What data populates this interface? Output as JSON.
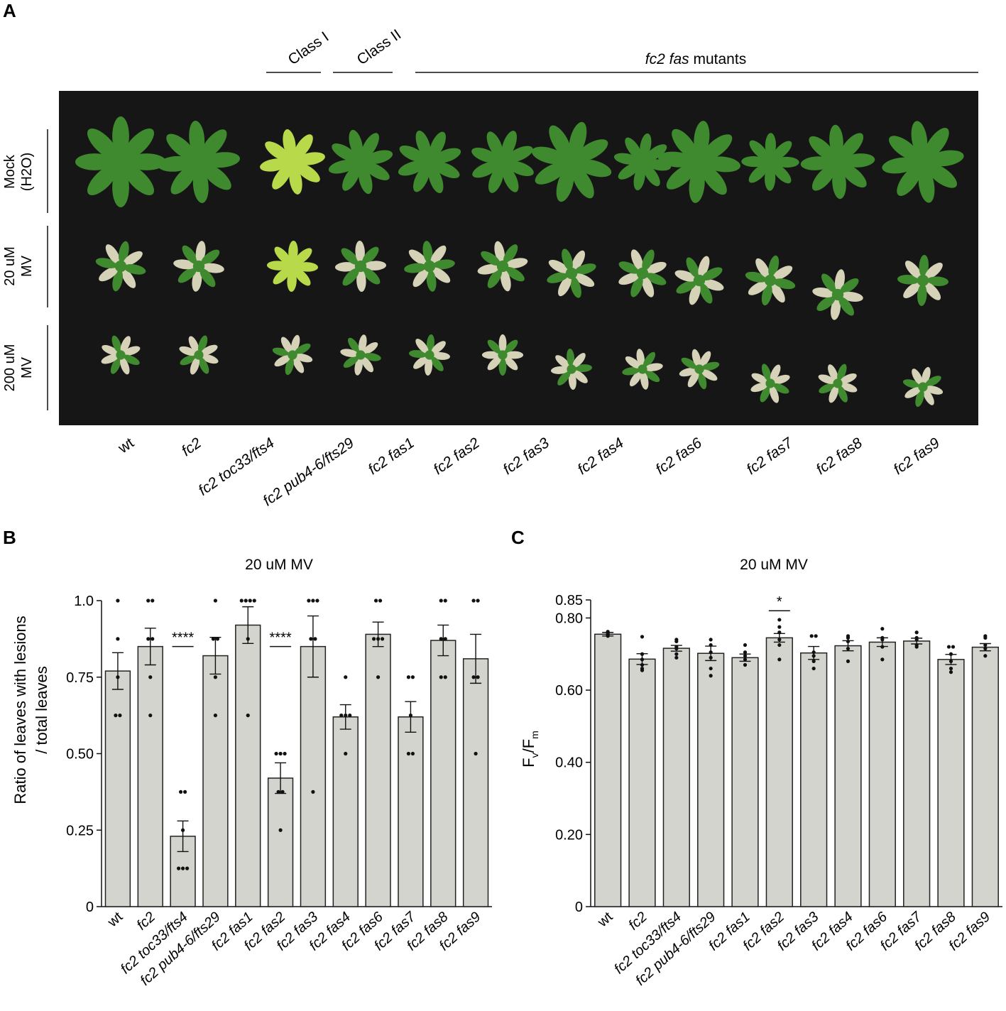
{
  "panel_a": {
    "letter": "A",
    "class_i_label": "Class I",
    "class_ii_label": "Class II",
    "mutants_label_italic": "fc2 fas",
    "mutants_label_rest": " mutants",
    "row_labels": [
      {
        "line1": "Mock",
        "line2": "(H2O)"
      },
      {
        "line1": "20 uM",
        "line2": "MV"
      },
      {
        "line1": "200 uM",
        "line2": "MV"
      }
    ],
    "genotypes": [
      "wt",
      "fc2",
      "fc2 toc33/fts4",
      "fc2 pub4-6/fts29",
      "fc2 fas1",
      "fc2 fas2",
      "fc2 fas3",
      "fc2 fas4",
      "fc2 fas6",
      "fc2 fas7",
      "fc2 fas8",
      "fc2 fas9"
    ],
    "colors": {
      "background": "#161616",
      "healthy": "#3f8a2e",
      "pale": "#b7d94a",
      "bleached": "#d6d2b8"
    }
  },
  "chart_data": [
    {
      "type": "bar",
      "letter": "B",
      "title": "20 uM MV",
      "ylabel_line1": "Ratio of leaves with lesions",
      "ylabel_line2": "/ total leaves",
      "ylim": [
        0,
        1.0
      ],
      "yticks": [
        0,
        0.25,
        0.5,
        0.75,
        1.0
      ],
      "ytick_labels": [
        "0",
        "0.25",
        "0.50",
        "0.75",
        "1.0"
      ],
      "categories": [
        "wt",
        "fc2",
        "fc2 toc33/fts4",
        "fc2 pub4-6/fts29",
        "fc2 fas1",
        "fc2 fas2",
        "fc2 fas3",
        "fc2 fas4",
        "fc2 fas6",
        "fc2 fas7",
        "fc2 fas8",
        "fc2 fas9"
      ],
      "values": [
        0.77,
        0.85,
        0.23,
        0.82,
        0.92,
        0.42,
        0.85,
        0.62,
        0.89,
        0.62,
        0.87,
        0.81
      ],
      "errors": [
        0.06,
        0.06,
        0.05,
        0.06,
        0.06,
        0.05,
        0.1,
        0.04,
        0.04,
        0.05,
        0.05,
        0.08
      ],
      "points": [
        [
          1.0,
          0.875,
          0.75,
          0.625,
          0.625
        ],
        [
          1.0,
          1.0,
          0.875,
          0.875,
          0.75,
          0.625
        ],
        [
          0.375,
          0.375,
          0.25,
          0.125,
          0.125,
          0.125
        ],
        [
          1.0,
          0.875,
          0.875,
          0.75,
          0.625
        ],
        [
          1.0,
          1.0,
          1.0,
          1.0,
          0.875,
          0.625
        ],
        [
          0.5,
          0.5,
          0.5,
          0.375,
          0.375,
          0.25
        ],
        [
          1.0,
          1.0,
          1.0,
          0.875,
          0.875,
          0.375
        ],
        [
          0.75,
          0.625,
          0.625,
          0.625,
          0.5
        ],
        [
          1.0,
          1.0,
          0.875,
          0.875,
          0.875,
          0.75
        ],
        [
          0.75,
          0.75,
          0.625,
          0.5,
          0.5
        ],
        [
          1.0,
          1.0,
          0.875,
          0.875,
          0.75,
          0.75
        ],
        [
          1.0,
          1.0,
          0.75,
          0.75,
          0.5
        ]
      ],
      "significance": [
        {
          "index": 2,
          "label": "****",
          "y": 0.85
        },
        {
          "index": 5,
          "label": "****",
          "y": 0.85
        }
      ],
      "colors": {
        "bar": "#d4d4cf",
        "edge": "#222222",
        "point": "#111111"
      }
    },
    {
      "type": "bar",
      "letter": "C",
      "title": "20 uM MV",
      "ylabel_main": "F",
      "ylabel_sub1": "v",
      "ylabel_mid": "/F",
      "ylabel_sub2": "m",
      "ylim": [
        0,
        0.85
      ],
      "yticks": [
        0,
        0.2,
        0.4,
        0.6,
        0.8,
        0.85
      ],
      "ytick_labels": [
        "0",
        "0.20",
        "0.40",
        "0.60",
        "0.80",
        "0.85"
      ],
      "categories": [
        "wt",
        "fc2",
        "fc2 toc33/fts4",
        "fc2 pub4-6/fts29",
        "fc2 fas1",
        "fc2 fas2",
        "fc2 fas3",
        "fc2 fas4",
        "fc2 fas6",
        "fc2 fas7",
        "fc2 fas8",
        "fc2 fas9"
      ],
      "values": [
        0.755,
        0.686,
        0.716,
        0.702,
        0.69,
        0.745,
        0.703,
        0.723,
        0.733,
        0.736,
        0.685,
        0.719
      ],
      "errors": [
        0.005,
        0.015,
        0.008,
        0.02,
        0.01,
        0.012,
        0.018,
        0.014,
        0.012,
        0.008,
        0.014,
        0.01
      ],
      "points": [
        [
          0.762,
          0.755,
          0.752,
          0.75,
          0.758,
          0.76
        ],
        [
          0.748,
          0.7,
          0.685,
          0.67,
          0.66,
          0.655
        ],
        [
          0.74,
          0.735,
          0.72,
          0.715,
          0.7,
          0.69
        ],
        [
          0.74,
          0.725,
          0.705,
          0.69,
          0.66,
          0.64
        ],
        [
          0.725,
          0.705,
          0.695,
          0.685,
          0.67
        ],
        [
          0.795,
          0.775,
          0.76,
          0.74,
          0.725,
          0.685
        ],
        [
          0.75,
          0.75,
          0.705,
          0.695,
          0.68,
          0.66
        ],
        [
          0.75,
          0.745,
          0.735,
          0.715,
          0.68
        ],
        [
          0.77,
          0.745,
          0.74,
          0.72,
          0.685
        ],
        [
          0.76,
          0.745,
          0.74,
          0.725,
          0.72
        ],
        [
          0.72,
          0.72,
          0.7,
          0.68,
          0.66,
          0.65
        ],
        [
          0.75,
          0.745,
          0.725,
          0.715,
          0.695
        ]
      ],
      "significance": [
        {
          "index": 5,
          "label": "*",
          "y": 0.82
        }
      ],
      "colors": {
        "bar": "#d4d4cf",
        "edge": "#222222",
        "point": "#111111"
      }
    }
  ]
}
